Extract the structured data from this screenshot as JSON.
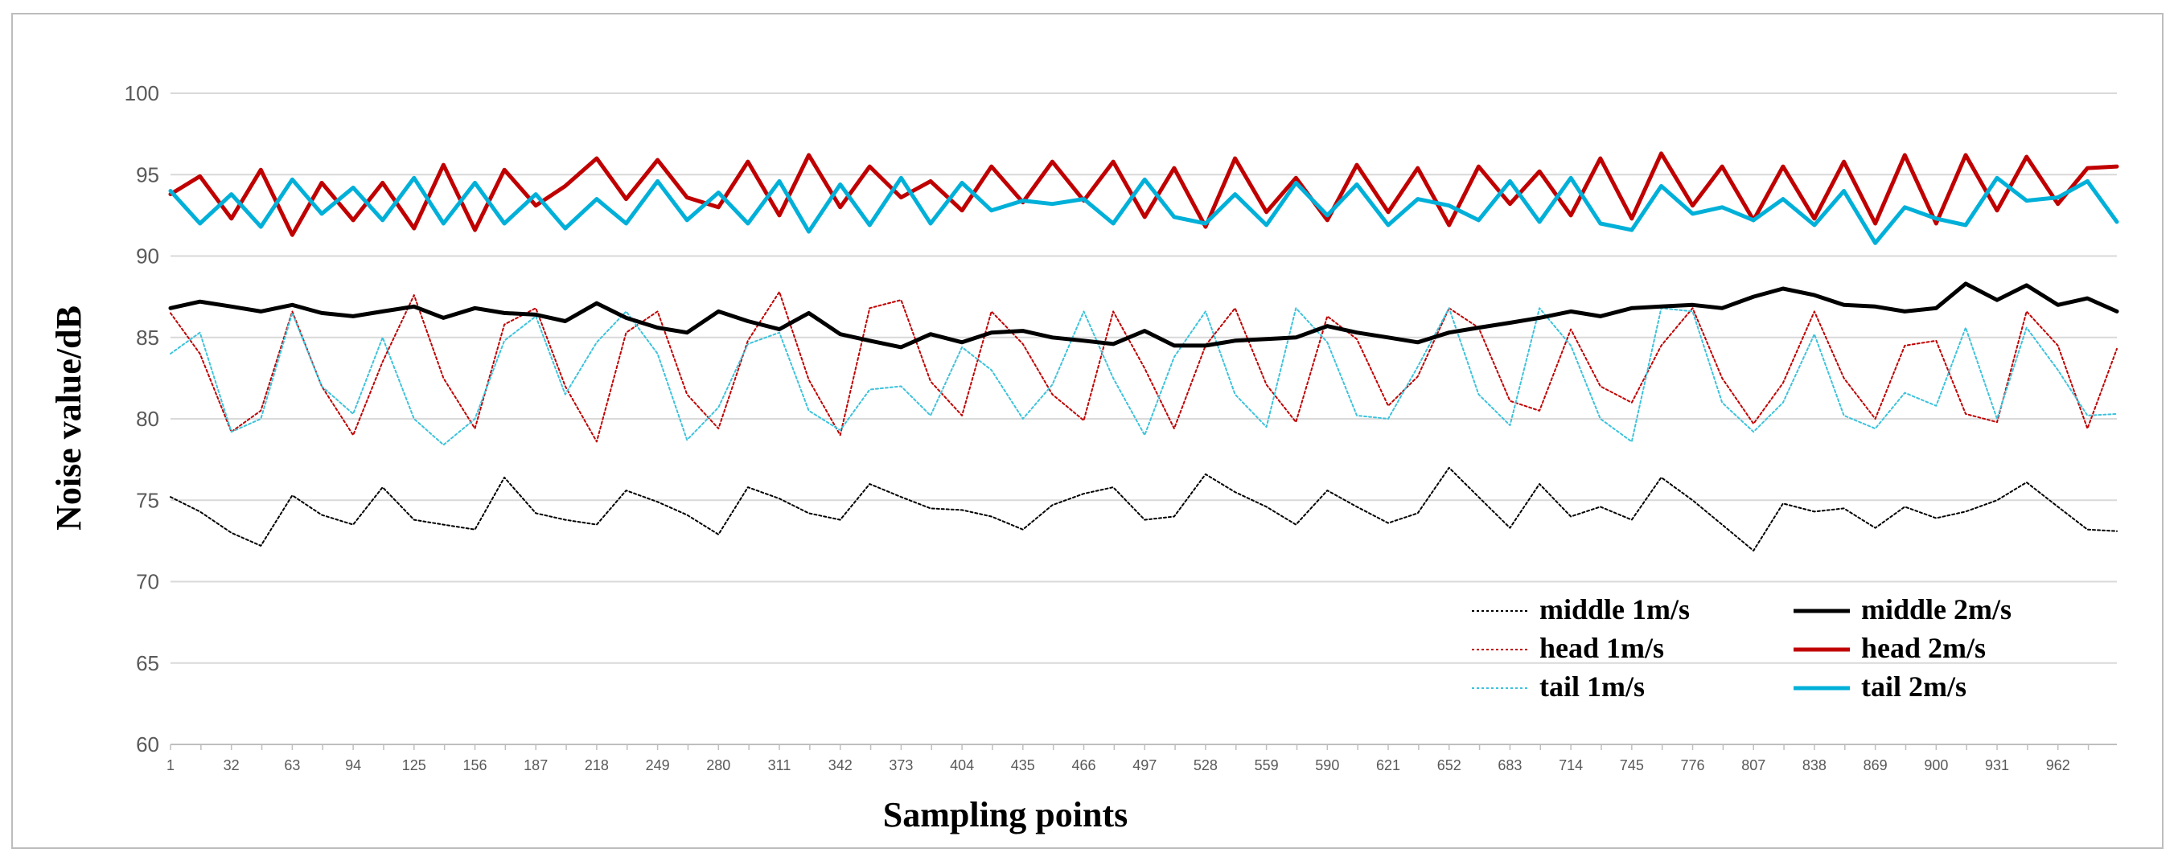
{
  "chart_data": {
    "type": "line",
    "title": "",
    "xlabel": "Sampling points",
    "ylabel": "Noise value/dB",
    "ylim": [
      60,
      100
    ],
    "yticks": [
      "60",
      "65",
      "70",
      "75",
      "80",
      "85",
      "90",
      "95",
      "100"
    ],
    "xlim": [
      1,
      992
    ],
    "xticks": [
      "1",
      "32",
      "63",
      "94",
      "125",
      "156",
      "187",
      "218",
      "249",
      "280",
      "311",
      "342",
      "373",
      "404",
      "435",
      "466",
      "497",
      "528",
      "559",
      "590",
      "621",
      "652",
      "683",
      "714",
      "745",
      "776",
      "807",
      "838",
      "869",
      "900",
      "931",
      "962"
    ],
    "grid": true,
    "legend_position": "bottom-right",
    "series": [
      {
        "name": "middle 1m/s",
        "color": "#000000",
        "style": "dotted",
        "width": 2,
        "x": [
          1,
          16,
          32,
          47,
          63,
          78,
          94,
          109,
          125,
          140,
          156,
          171,
          187,
          202,
          218,
          233,
          249,
          264,
          280,
          295,
          311,
          326,
          342,
          357,
          373,
          388,
          404,
          419,
          435,
          450,
          466,
          481,
          497,
          512,
          528,
          543,
          559,
          574,
          590,
          605,
          621,
          636,
          652,
          667,
          683,
          698,
          714,
          729,
          745,
          760,
          776,
          791,
          807,
          822,
          838,
          853,
          869,
          884,
          900,
          915,
          931,
          946,
          962,
          977,
          992
        ],
        "values": [
          75.2,
          74.3,
          73.0,
          72.2,
          75.3,
          74.1,
          73.5,
          75.8,
          73.8,
          73.5,
          73.2,
          76.4,
          74.2,
          73.8,
          73.5,
          75.6,
          74.9,
          74.1,
          72.9,
          75.8,
          75.1,
          74.2,
          73.8,
          76.0,
          75.2,
          74.5,
          74.4,
          74.0,
          73.2,
          74.7,
          75.4,
          75.8,
          73.8,
          74.0,
          76.6,
          75.5,
          74.6,
          73.5,
          75.6,
          74.6,
          73.6,
          74.2,
          77.0,
          75.2,
          73.3,
          76.0,
          74.0,
          74.6,
          73.8,
          76.4,
          75.0,
          73.5,
          71.9,
          74.8,
          74.3,
          74.5,
          73.3,
          74.6,
          73.9,
          74.3,
          75.0,
          76.1,
          74.6,
          73.2,
          73.1
        ]
      },
      {
        "name": "middle 2m/s",
        "color": "#000000",
        "style": "solid",
        "width": 5,
        "x": [
          1,
          16,
          32,
          47,
          63,
          78,
          94,
          109,
          125,
          140,
          156,
          171,
          187,
          202,
          218,
          233,
          249,
          264,
          280,
          295,
          311,
          326,
          342,
          357,
          373,
          388,
          404,
          419,
          435,
          450,
          466,
          481,
          497,
          512,
          528,
          543,
          559,
          574,
          590,
          605,
          621,
          636,
          652,
          667,
          683,
          698,
          714,
          729,
          745,
          760,
          776,
          791,
          807,
          822,
          838,
          853,
          869,
          884,
          900,
          915,
          931,
          946,
          962,
          977,
          992
        ],
        "values": [
          86.8,
          87.2,
          86.9,
          86.6,
          87.0,
          86.5,
          86.3,
          86.6,
          86.9,
          86.2,
          86.8,
          86.5,
          86.4,
          86.0,
          87.1,
          86.2,
          85.6,
          85.3,
          86.6,
          86.0,
          85.5,
          86.5,
          85.2,
          84.8,
          84.4,
          85.2,
          84.7,
          85.3,
          85.4,
          85.0,
          84.8,
          84.6,
          85.4,
          84.5,
          84.5,
          84.8,
          84.9,
          85.0,
          85.7,
          85.3,
          85.0,
          84.7,
          85.3,
          85.6,
          85.9,
          86.2,
          86.6,
          86.3,
          86.8,
          86.9,
          87.0,
          86.8,
          87.5,
          88.0,
          87.6,
          87.0,
          86.9,
          86.6,
          86.8,
          88.3,
          87.3,
          88.2,
          87.0,
          87.4,
          86.6
        ]
      },
      {
        "name": "head 1m/s",
        "color": "#c00000",
        "style": "dotted",
        "width": 2,
        "x": [
          1,
          16,
          32,
          47,
          63,
          78,
          94,
          109,
          125,
          140,
          156,
          171,
          187,
          202,
          218,
          233,
          249,
          264,
          280,
          295,
          311,
          326,
          342,
          357,
          373,
          388,
          404,
          419,
          435,
          450,
          466,
          481,
          497,
          512,
          528,
          543,
          559,
          574,
          590,
          605,
          621,
          636,
          652,
          667,
          683,
          698,
          714,
          729,
          745,
          760,
          776,
          791,
          807,
          822,
          838,
          853,
          869,
          884,
          900,
          915,
          931,
          946,
          962,
          977,
          992
        ],
        "values": [
          86.5,
          84.0,
          79.2,
          80.5,
          86.6,
          82.0,
          79.0,
          83.5,
          87.6,
          82.5,
          79.4,
          85.8,
          86.8,
          82.0,
          78.6,
          85.3,
          86.6,
          81.5,
          79.4,
          84.8,
          87.8,
          82.4,
          79.0,
          86.8,
          87.3,
          82.3,
          80.2,
          86.6,
          84.6,
          81.5,
          79.9,
          86.6,
          83.1,
          79.4,
          84.5,
          86.8,
          82.1,
          79.8,
          86.3,
          84.9,
          80.8,
          82.6,
          86.8,
          85.6,
          81.1,
          80.5,
          85.5,
          82.0,
          81.0,
          84.5,
          86.8,
          82.5,
          79.7,
          82.2,
          86.6,
          82.5,
          80.0,
          84.5,
          84.8,
          80.3,
          79.8,
          86.6,
          84.5,
          79.4,
          84.3
        ]
      },
      {
        "name": "head 2m/s",
        "color": "#c00000",
        "style": "solid",
        "width": 5,
        "x": [
          1,
          16,
          32,
          47,
          63,
          78,
          94,
          109,
          125,
          140,
          156,
          171,
          187,
          202,
          218,
          233,
          249,
          264,
          280,
          295,
          311,
          326,
          342,
          357,
          373,
          388,
          404,
          419,
          435,
          450,
          466,
          481,
          497,
          512,
          528,
          543,
          559,
          574,
          590,
          605,
          621,
          636,
          652,
          667,
          683,
          698,
          714,
          729,
          745,
          760,
          776,
          791,
          807,
          822,
          838,
          853,
          869,
          884,
          900,
          915,
          931,
          946,
          962,
          977,
          992
        ],
        "values": [
          93.8,
          94.9,
          92.3,
          95.3,
          91.3,
          94.5,
          92.2,
          94.5,
          91.7,
          95.6,
          91.6,
          95.3,
          93.1,
          94.3,
          96.0,
          93.5,
          95.9,
          93.6,
          93.0,
          95.8,
          92.5,
          96.2,
          93.0,
          95.5,
          93.6,
          94.6,
          92.8,
          95.5,
          93.3,
          95.8,
          93.4,
          95.8,
          92.4,
          95.4,
          91.8,
          96.0,
          92.7,
          94.8,
          92.2,
          95.6,
          92.7,
          95.4,
          91.9,
          95.5,
          93.2,
          95.2,
          92.5,
          96.0,
          92.3,
          96.3,
          93.1,
          95.5,
          92.2,
          95.5,
          92.3,
          95.8,
          92.0,
          96.2,
          92.0,
          96.2,
          92.8,
          96.1,
          93.2,
          95.4,
          95.5
        ]
      },
      {
        "name": "tail 1m/s",
        "color": "#3cc3dc",
        "style": "dotted",
        "width": 2,
        "x": [
          1,
          16,
          32,
          47,
          63,
          78,
          94,
          109,
          125,
          140,
          156,
          171,
          187,
          202,
          218,
          233,
          249,
          264,
          280,
          295,
          311,
          326,
          342,
          357,
          373,
          388,
          404,
          419,
          435,
          450,
          466,
          481,
          497,
          512,
          528,
          543,
          559,
          574,
          590,
          605,
          621,
          636,
          652,
          667,
          683,
          698,
          714,
          729,
          745,
          760,
          776,
          791,
          807,
          822,
          838,
          853,
          869,
          884,
          900,
          915,
          931,
          946,
          962,
          977,
          992
        ],
        "values": [
          84.0,
          85.3,
          79.2,
          80.0,
          86.5,
          82.0,
          80.3,
          85.0,
          80.0,
          78.4,
          80.0,
          84.8,
          86.3,
          81.5,
          84.7,
          86.6,
          84.0,
          78.7,
          80.7,
          84.6,
          85.3,
          80.5,
          79.3,
          81.8,
          82.0,
          80.2,
          84.4,
          83.0,
          80.0,
          82.1,
          86.6,
          82.5,
          79.0,
          83.8,
          86.6,
          81.5,
          79.5,
          86.8,
          84.7,
          80.2,
          80.0,
          83.2,
          86.8,
          81.5,
          79.6,
          86.8,
          84.5,
          80.0,
          78.6,
          86.8,
          86.6,
          81.0,
          79.2,
          81.0,
          85.2,
          80.2,
          79.4,
          81.6,
          80.8,
          85.6,
          80.0,
          85.6,
          83.0,
          80.2,
          80.3
        ]
      },
      {
        "name": "tail 2m/s",
        "color": "#00b0d8",
        "style": "solid",
        "width": 5,
        "x": [
          1,
          16,
          32,
          47,
          63,
          78,
          94,
          109,
          125,
          140,
          156,
          171,
          187,
          202,
          218,
          233,
          249,
          264,
          280,
          295,
          311,
          326,
          342,
          357,
          373,
          388,
          404,
          419,
          435,
          450,
          466,
          481,
          497,
          512,
          528,
          543,
          559,
          574,
          590,
          605,
          621,
          636,
          652,
          667,
          683,
          698,
          714,
          729,
          745,
          760,
          776,
          791,
          807,
          822,
          838,
          853,
          869,
          884,
          900,
          915,
          931,
          946,
          962,
          977,
          992
        ],
        "values": [
          94.0,
          92.0,
          93.8,
          91.8,
          94.7,
          92.6,
          94.2,
          92.2,
          94.8,
          92.0,
          94.5,
          92.0,
          93.8,
          91.7,
          93.5,
          92.0,
          94.6,
          92.2,
          93.9,
          92.0,
          94.6,
          91.5,
          94.4,
          91.9,
          94.8,
          92.0,
          94.5,
          92.8,
          93.4,
          93.2,
          93.5,
          92.0,
          94.7,
          92.4,
          92.0,
          93.8,
          91.9,
          94.5,
          92.5,
          94.4,
          91.9,
          93.5,
          93.1,
          92.2,
          94.6,
          92.1,
          94.8,
          92.0,
          91.6,
          94.3,
          92.6,
          93.0,
          92.2,
          93.5,
          91.9,
          94.0,
          90.8,
          93.0,
          92.3,
          91.9,
          94.8,
          93.4,
          93.6,
          94.6,
          92.1
        ]
      }
    ]
  }
}
